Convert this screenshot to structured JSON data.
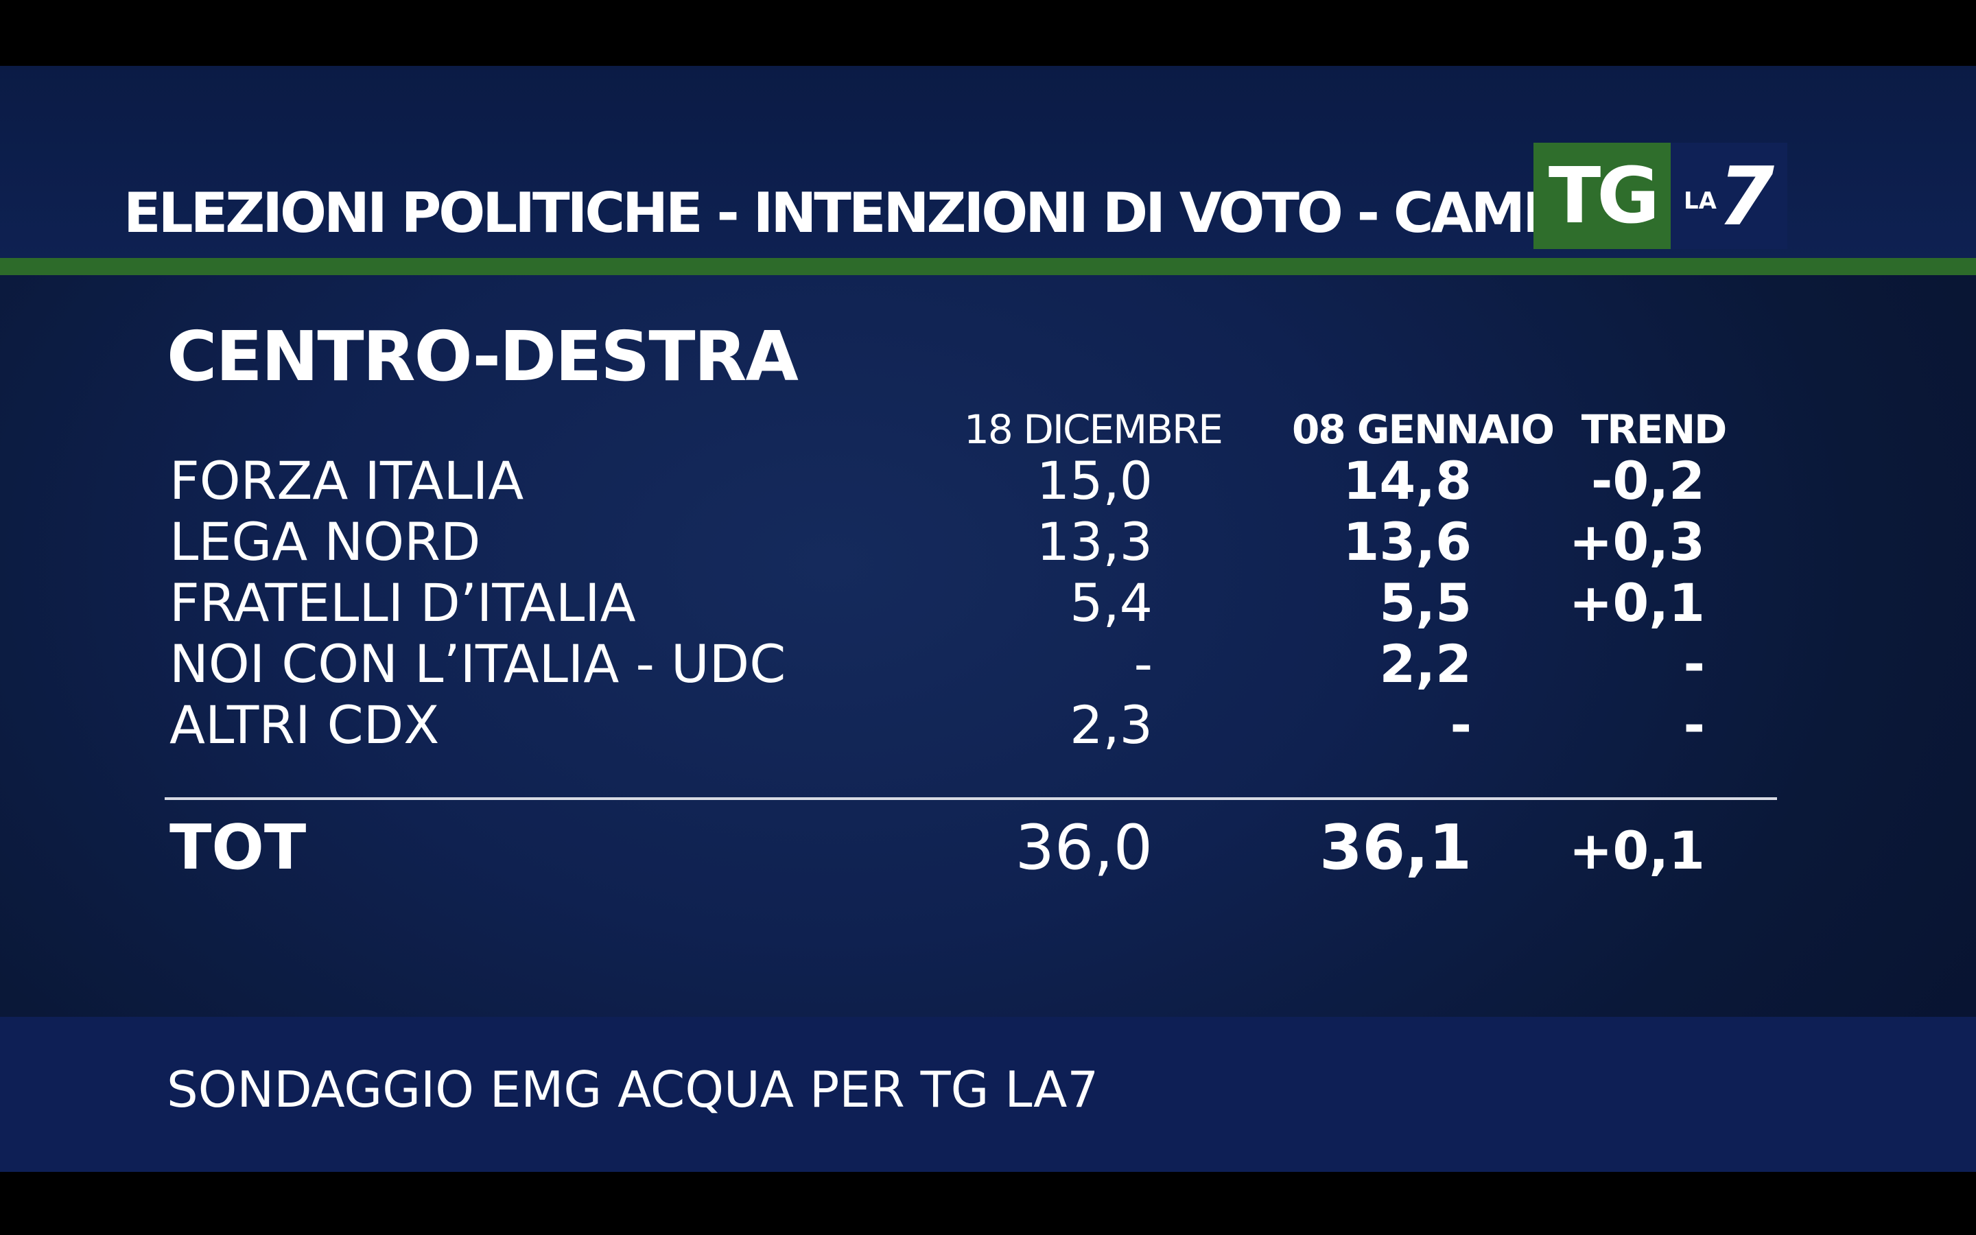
{
  "header": {
    "title": "ELEZIONI POLITICHE - INTENZIONI DI VOTO - CAMERA",
    "logo_tg": "TG",
    "logo_la": "LA",
    "logo_7": "7"
  },
  "section": {
    "title": "CENTRO-DESTRA"
  },
  "columns": {
    "prev": "18 DICEMBRE",
    "curr": "08 GENNAIO",
    "trend": "TREND"
  },
  "rows": [
    {
      "name": "FORZA ITALIA",
      "prev": "15,0",
      "curr": "14,8",
      "trend": "-0,2"
    },
    {
      "name": "LEGA NORD",
      "prev": "13,3",
      "curr": "13,6",
      "trend": "+0,3"
    },
    {
      "name": "FRATELLI D’ITALIA",
      "prev": "5,4",
      "curr": "5,5",
      "trend": "+0,1"
    },
    {
      "name": "NOI CON L’ITALIA - UDC",
      "prev": "-",
      "curr": "2,2",
      "trend": "-"
    },
    {
      "name": "ALTRI CDX",
      "prev": "2,3",
      "curr": "-",
      "trend": "-"
    }
  ],
  "total": {
    "name": "TOT",
    "prev": "36,0",
    "curr": "36,1",
    "trend": "+0,1"
  },
  "footer": {
    "source": "SONDAGGIO EMG ACQUA PER TG LA7"
  },
  "colors": {
    "green": "#2d6b2a",
    "navy": "#0f2150"
  }
}
